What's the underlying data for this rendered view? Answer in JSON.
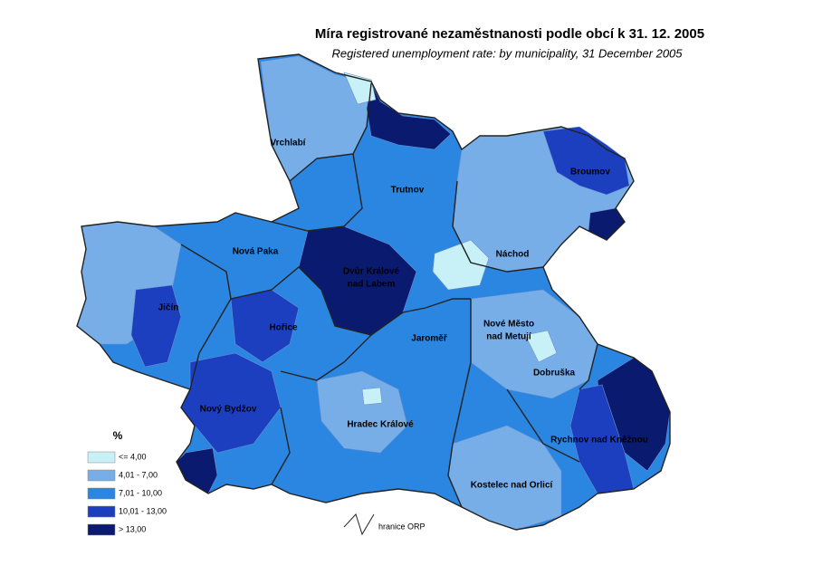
{
  "title": "Míra registrované nezaměstnanosti podle obcí k 31. 12. 2005",
  "subtitle": "Registered unemployment rate: by municipality, 31 December 2005",
  "legend": {
    "title": "%",
    "items": [
      {
        "label": "<= 4,00",
        "color": "#c8f0f7"
      },
      {
        "label": "4,01 - 7,00",
        "color": "#78aee8"
      },
      {
        "label": "7,01 - 10,00",
        "color": "#2a86e0"
      },
      {
        "label": "10,01 - 13,00",
        "color": "#1c3fbf"
      },
      {
        "label": "> 13,00",
        "color": "#0a1a6e"
      }
    ]
  },
  "boundary_label": "hranice ORP",
  "places": [
    {
      "lines": [
        "Vrchlabí"
      ]
    },
    {
      "lines": [
        "Trutnov"
      ]
    },
    {
      "lines": [
        "Broumov"
      ]
    },
    {
      "lines": [
        "Nová Paka"
      ]
    },
    {
      "lines": [
        "Náchod"
      ]
    },
    {
      "lines": [
        "Dvůr Králové",
        "nad Labem"
      ]
    },
    {
      "lines": [
        "Jičín"
      ]
    },
    {
      "lines": [
        "Hořice"
      ]
    },
    {
      "lines": [
        "Jaroměř"
      ]
    },
    {
      "lines": [
        "Nové Město",
        "nad Metují"
      ]
    },
    {
      "lines": [
        "Dobruška"
      ]
    },
    {
      "lines": [
        "Nový Bydžov"
      ]
    },
    {
      "lines": [
        "Hradec Králové"
      ]
    },
    {
      "lines": [
        "Rychnov nad Kněžnou"
      ]
    },
    {
      "lines": [
        "Kostelec nad Orlicí"
      ]
    }
  ]
}
